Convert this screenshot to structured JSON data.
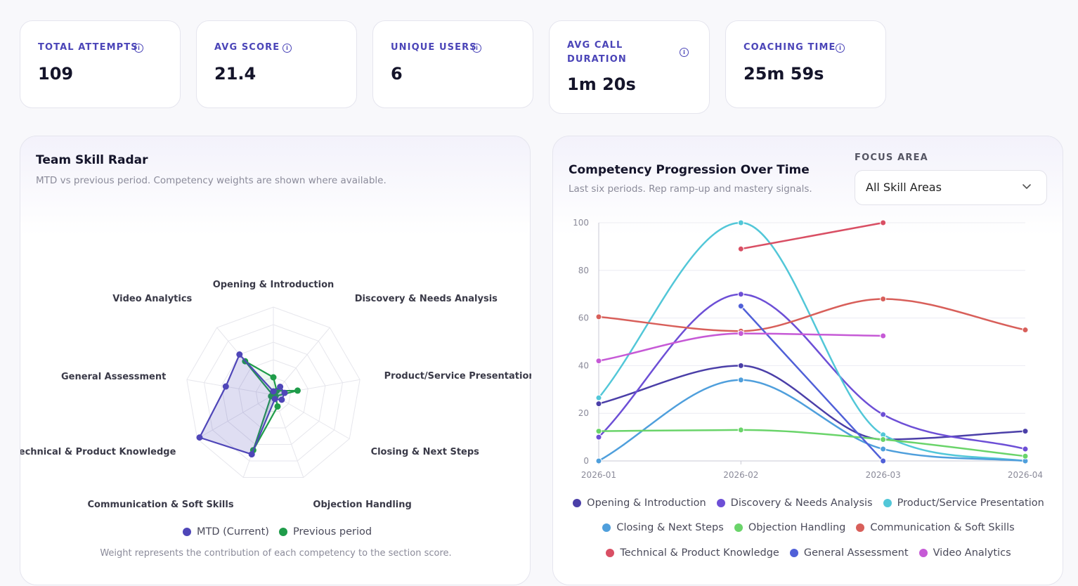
{
  "kpis": [
    {
      "label": "TOTAL ATTEMPTS",
      "value": "109"
    },
    {
      "label": "AVG SCORE",
      "value": "21.4"
    },
    {
      "label": "UNIQUE USERS",
      "value": "6"
    },
    {
      "label": "AVG CALL DURATION",
      "label_line1": "AVG CALL",
      "label_line2": "DURATION",
      "value": "1m 20s"
    },
    {
      "label": "COACHING TIME",
      "value": "25m 59s"
    }
  ],
  "radar_panel": {
    "title": "Team Skill Radar",
    "subtitle": "MTD vs previous period. Competency weights are shown where available.",
    "footer": "Weight represents the contribution of each competency to the section score.",
    "legend": [
      {
        "label": "MTD (Current)",
        "color": "#4f46b8"
      },
      {
        "label": "Previous period",
        "color": "#1f9c4a"
      }
    ]
  },
  "progress_panel": {
    "title": "Competency Progression Over Time",
    "subtitle": "Last six periods. Rep ramp-up and mastery signals.",
    "focus_label": "FOCUS AREA",
    "focus_value": "All Skill Areas"
  },
  "chart_data": [
    {
      "type": "radar",
      "title": "Team Skill Radar",
      "axes": [
        "Opening & Introduction",
        "Discovery & Needs Analysis",
        "Product/Service Presentation",
        "Closing & Next Steps",
        "Objection Handling",
        "Communication & Soft Skills",
        "Technical & Product Knowledge",
        "General Assessment",
        "Video Analytics"
      ],
      "range": [
        0,
        100
      ],
      "series": [
        {
          "name": "MTD (Current)",
          "color": "#4f46b8",
          "values": [
            4,
            12,
            13,
            11,
            5,
            72,
            97,
            55,
            60
          ]
        },
        {
          "name": "Previous period",
          "color": "#1f9c4a",
          "values": [
            20,
            6,
            28,
            3,
            14,
            67,
            3,
            1,
            50
          ]
        }
      ]
    },
    {
      "type": "line",
      "title": "Competency Progression Over Time",
      "categories": [
        "2026-01",
        "2026-02",
        "2026-03",
        "2026-04"
      ],
      "ylim": [
        0,
        100
      ],
      "yticks": [
        0,
        20,
        40,
        60,
        80,
        100
      ],
      "series": [
        {
          "name": "Opening & Introduction",
          "color": "#4b3fa8",
          "values": [
            24,
            40,
            9,
            12.5
          ]
        },
        {
          "name": "Discovery & Needs Analysis",
          "color": "#6d4fd6",
          "values": [
            10,
            70,
            19.5,
            5
          ]
        },
        {
          "name": "Product/Service Presentation",
          "color": "#52c7d8",
          "values": [
            26.5,
            100,
            11,
            0
          ]
        },
        {
          "name": "Closing & Next Steps",
          "color": "#4f9fdc",
          "values": [
            0,
            34,
            5,
            0
          ]
        },
        {
          "name": "Objection Handling",
          "color": "#6ad46a",
          "values": [
            12.5,
            13,
            9,
            2
          ]
        },
        {
          "name": "Communication & Soft Skills",
          "color": "#d85f5a",
          "values": [
            60.5,
            54.5,
            68,
            55
          ]
        },
        {
          "name": "Technical & Product Knowledge",
          "color": "#d94f64",
          "values": [
            null,
            89,
            100,
            null
          ]
        },
        {
          "name": "General Assessment",
          "color": "#5060d8",
          "values": [
            null,
            65,
            0,
            null
          ]
        },
        {
          "name": "Video Analytics",
          "color": "#c65ad6",
          "values": [
            42,
            53.5,
            52.5,
            null
          ]
        }
      ]
    }
  ]
}
